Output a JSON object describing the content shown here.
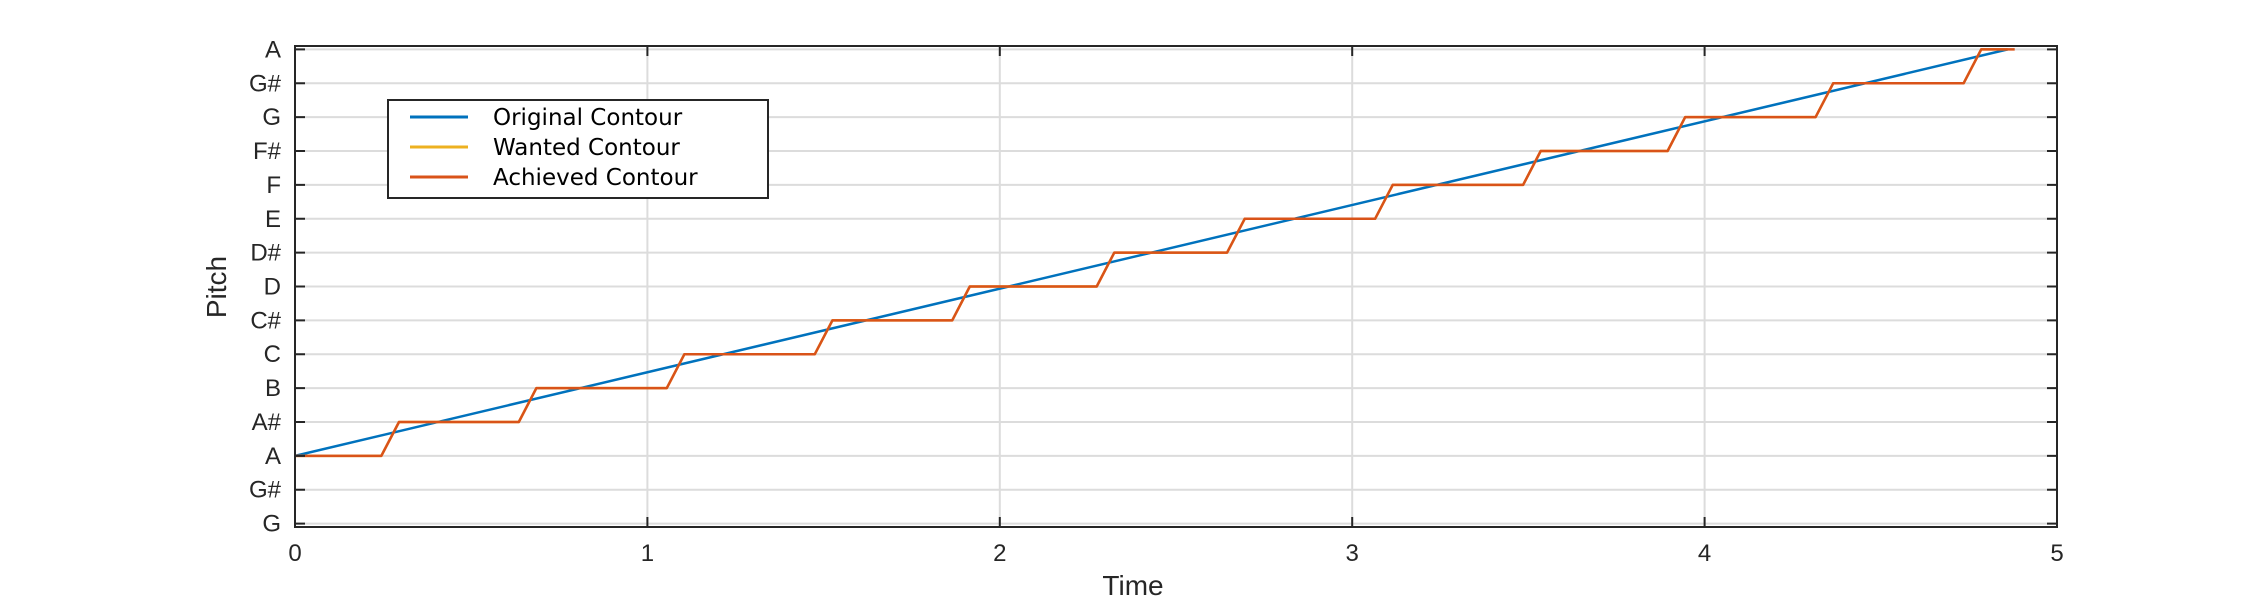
{
  "chart_data": {
    "type": "line",
    "xlabel": "Time",
    "ylabel": "Pitch",
    "xlim": [
      0,
      5
    ],
    "ylim": [
      -0.1,
      14.1
    ],
    "grid": true,
    "x_ticks": [
      0,
      1,
      2,
      3,
      4,
      5
    ],
    "x_tick_labels": [
      "0",
      "1",
      "2",
      "3",
      "4",
      "5"
    ],
    "y_ticks": [
      0,
      1,
      2,
      3,
      4,
      5,
      6,
      7,
      8,
      9,
      10,
      11,
      12,
      13,
      14
    ],
    "y_tick_labels": [
      "G",
      "G#",
      "A",
      "A#",
      "B",
      "C",
      "C#",
      "D",
      "D#",
      "E",
      "F",
      "F#",
      "G",
      "G#",
      "A"
    ],
    "legend_position": "top-left",
    "series": [
      {
        "name": "Original Contour",
        "color": "#0072BD",
        "kind": "linear",
        "x": [
          0,
          4.86
        ],
        "y": [
          2.0,
          14.0
        ]
      },
      {
        "name": "Wanted Contour",
        "color": "#EDB120",
        "kind": "step",
        "x_start": 0,
        "x_end": 4.86,
        "step_times": [
          0.27,
          0.66,
          1.08,
          1.5,
          1.89,
          2.3,
          2.67,
          3.09,
          3.51,
          3.92,
          4.34,
          4.76
        ],
        "levels": [
          2,
          3,
          4,
          5,
          6,
          7,
          8,
          9,
          10,
          11,
          12,
          13,
          14
        ]
      },
      {
        "name": "Achieved Contour",
        "color": "#D95319",
        "kind": "step",
        "x_start": 0,
        "x_end": 4.88,
        "step_times": [
          0.27,
          0.66,
          1.08,
          1.5,
          1.89,
          2.3,
          2.67,
          3.09,
          3.51,
          3.92,
          4.34,
          4.76
        ],
        "levels": [
          2,
          3,
          4,
          5,
          6,
          7,
          8,
          9,
          10,
          11,
          12,
          13,
          14
        ]
      }
    ]
  }
}
